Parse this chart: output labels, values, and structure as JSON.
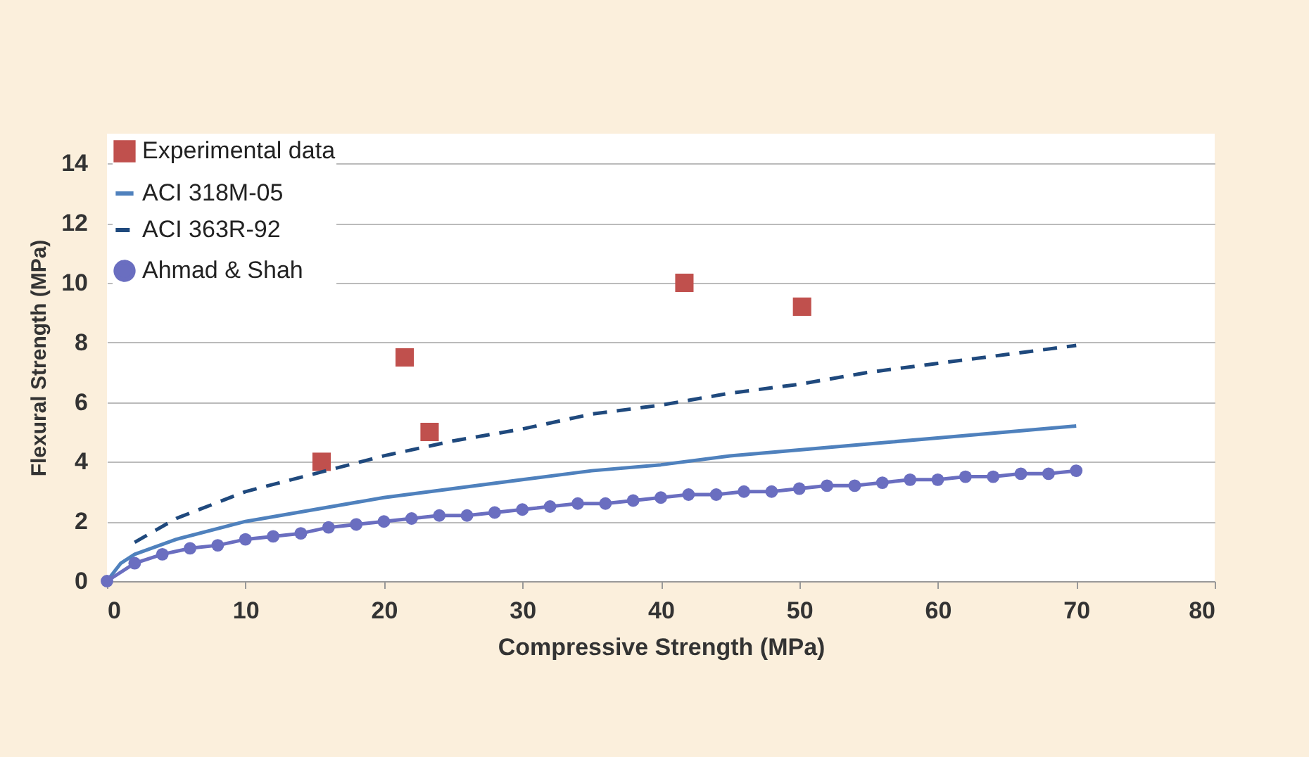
{
  "chart_data": {
    "type": "line",
    "xlabel": "Compressive Strength (MPa)",
    "ylabel": "Flexural Strength (MPa)",
    "xlim": [
      0,
      80
    ],
    "xticks": [
      0,
      10,
      20,
      30,
      40,
      50,
      60,
      70,
      80
    ],
    "ylim": [
      0,
      15
    ],
    "yticks": [
      0,
      2,
      4,
      6,
      8,
      10,
      12,
      14
    ],
    "grid": "y",
    "legend": "top left",
    "series": [
      {
        "name": "Experimental data",
        "type": "scatter",
        "marker": "square",
        "color": "#c0504d",
        "x": [
          15.5,
          21.5,
          23.3,
          41.7,
          50.2
        ],
        "values": [
          4.0,
          7.5,
          5.0,
          10.0,
          9.2
        ]
      },
      {
        "name": "ACI 318M-05",
        "line_style": "solid",
        "color": "#4f81bd",
        "x": [
          0,
          1,
          2,
          5,
          10,
          15,
          20,
          25,
          30,
          35,
          40,
          45,
          50,
          55,
          60,
          65,
          70
        ],
        "values": [
          0,
          0.6,
          0.9,
          1.4,
          2.0,
          2.4,
          2.8,
          3.1,
          3.4,
          3.7,
          3.9,
          4.2,
          4.4,
          4.6,
          4.8,
          5.0,
          5.2
        ]
      },
      {
        "name": "ACI 363R-92",
        "line_style": "dashed",
        "color": "#1f497d",
        "x": [
          2,
          5,
          10,
          15,
          20,
          25,
          30,
          35,
          40,
          45,
          50,
          55,
          60,
          65,
          70
        ],
        "values": [
          1.3,
          2.1,
          3.0,
          3.6,
          4.2,
          4.7,
          5.1,
          5.6,
          5.9,
          6.3,
          6.6,
          7.0,
          7.3,
          7.6,
          7.9
        ]
      },
      {
        "name": "Ahmad & Shah",
        "line_style": "solid",
        "marker": "circle",
        "color": "#6a6ec0",
        "x": [
          0,
          2,
          4,
          6,
          8,
          10,
          12,
          14,
          16,
          18,
          20,
          22,
          24,
          26,
          28,
          30,
          32,
          34,
          36,
          38,
          40,
          42,
          44,
          46,
          48,
          50,
          52,
          54,
          56,
          58,
          60,
          62,
          64,
          66,
          68,
          70
        ],
        "values": [
          0,
          0.6,
          0.9,
          1.1,
          1.2,
          1.4,
          1.5,
          1.6,
          1.8,
          1.9,
          2.0,
          2.1,
          2.2,
          2.2,
          2.3,
          2.4,
          2.5,
          2.6,
          2.6,
          2.7,
          2.8,
          2.9,
          2.9,
          3.0,
          3.0,
          3.1,
          3.2,
          3.2,
          3.3,
          3.4,
          3.4,
          3.5,
          3.5,
          3.6,
          3.6,
          3.7
        ]
      }
    ]
  }
}
